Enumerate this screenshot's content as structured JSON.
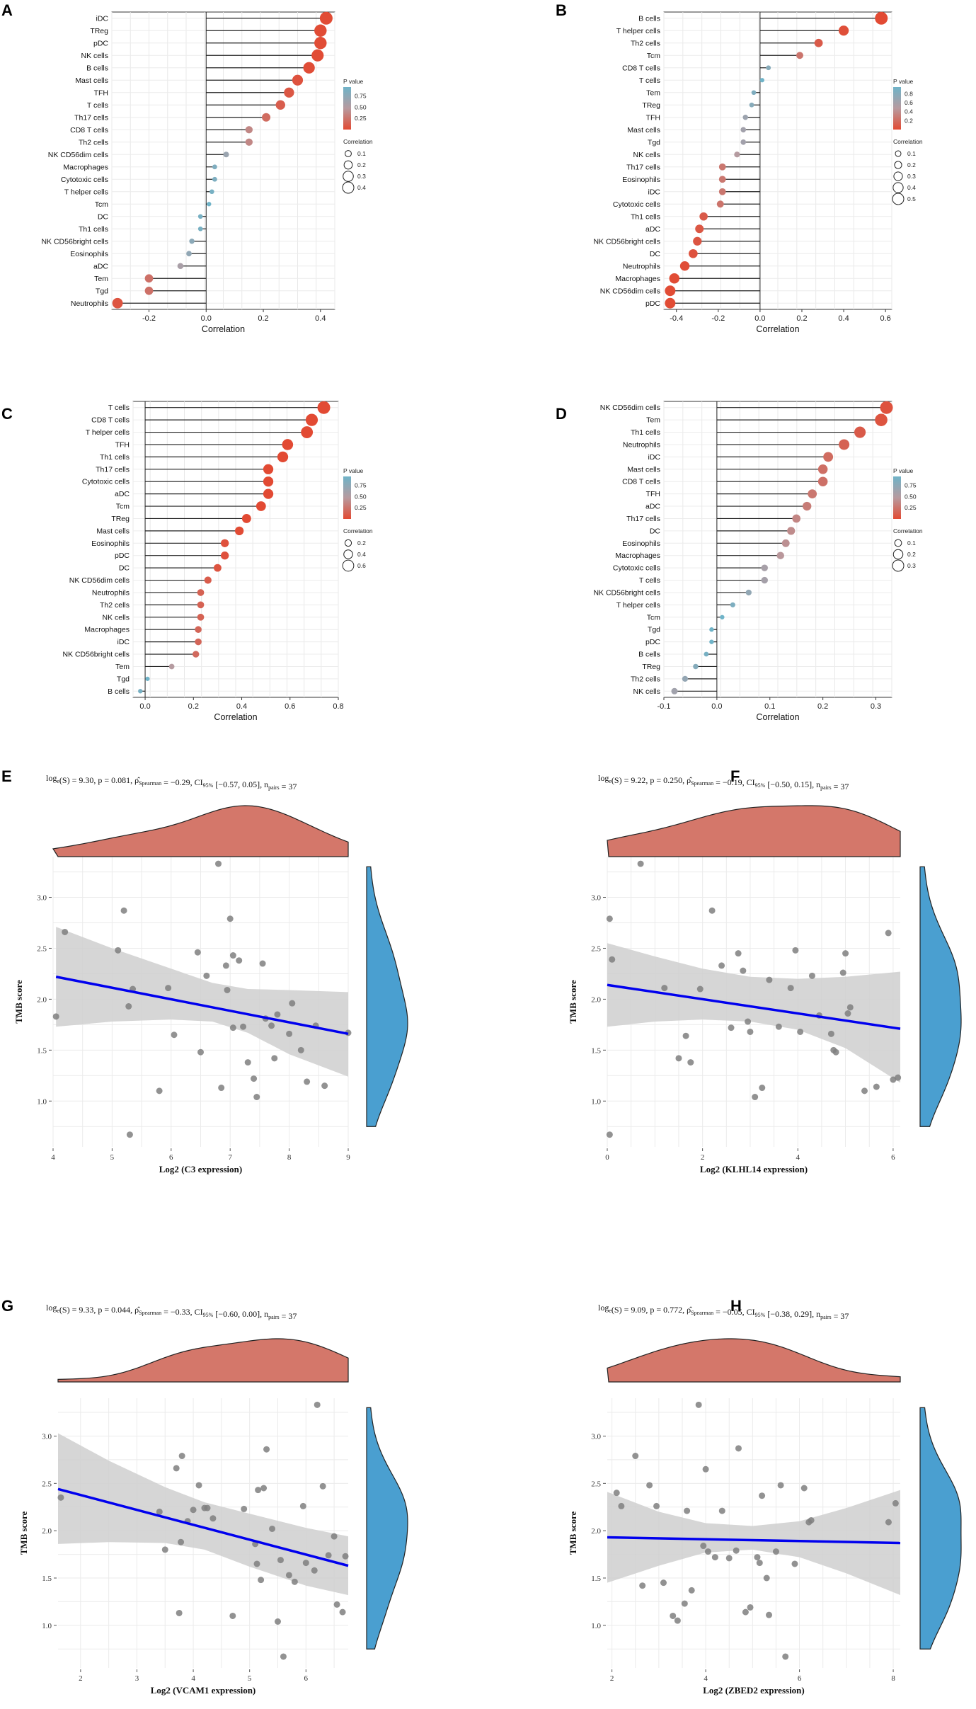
{
  "colors": {
    "low_p": "#e24a33",
    "mid_p": "#b79a9f",
    "high_p": "#6fb3c8",
    "regression": "#0000ee",
    "band": "#cfcfcf",
    "top_density": "#d4776a",
    "right_density": "#4a9fd0"
  },
  "chart_data": [
    {
      "panel": "A",
      "type": "scatter",
      "subtype": "lollipop",
      "xlabel": "Correlation",
      "xlim": [
        -0.33,
        0.45
      ],
      "xticks": [
        -0.2,
        0.0,
        0.2,
        0.4
      ],
      "xtick_labels": [
        "-0.2",
        "0.0",
        "0.2",
        "0.4"
      ],
      "categories": [
        "iDC",
        "TReg",
        "pDC",
        "NK cells",
        "B cells",
        "Mast cells",
        "TFH",
        "T cells",
        "Th17 cells",
        "CD8 T cells",
        "Th2 cells",
        "NK CD56dim cells",
        "Macrophages",
        "Cytotoxic cells",
        "T helper cells",
        "Tcm",
        "DC",
        "Th1 cells",
        "NK CD56bright cells",
        "Eosinophils",
        "aDC",
        "Tem",
        "Tgd",
        "Neutrophils"
      ],
      "values": [
        0.42,
        0.4,
        0.4,
        0.39,
        0.36,
        0.32,
        0.29,
        0.26,
        0.21,
        0.15,
        0.15,
        0.07,
        0.03,
        0.03,
        0.02,
        0.01,
        -0.02,
        -0.02,
        -0.05,
        -0.06,
        -0.09,
        -0.2,
        -0.2,
        -0.31
      ],
      "pvalues": [
        0.01,
        0.01,
        0.01,
        0.01,
        0.02,
        0.05,
        0.08,
        0.12,
        0.21,
        0.38,
        0.38,
        0.68,
        0.85,
        0.86,
        0.9,
        0.95,
        0.9,
        0.9,
        0.77,
        0.74,
        0.59,
        0.24,
        0.24,
        0.06
      ],
      "legend": {
        "p_title": "P value",
        "p_labels": [
          "0.75",
          "0.50",
          "0.25"
        ],
        "p_range": [
          0.0,
          0.95
        ],
        "size_title": "Correlation",
        "size_labels": [
          "0.1",
          "0.2",
          "0.3",
          "0.4"
        ]
      }
    },
    {
      "panel": "B",
      "type": "scatter",
      "subtype": "lollipop",
      "xlabel": "Correlation",
      "xlim": [
        -0.46,
        0.63
      ],
      "xticks": [
        -0.4,
        -0.2,
        0.0,
        0.2,
        0.4,
        0.6
      ],
      "xtick_labels": [
        "-0.4",
        "-0.2",
        "0.0",
        "0.2",
        "0.4",
        "0.6"
      ],
      "categories": [
        "B cells",
        "T helper cells",
        "Th2 cells",
        "Tcm",
        "CD8 T cells",
        "T cells",
        "Tem",
        "TReg",
        "TFH",
        "Mast cells",
        "Tgd",
        "NK cells",
        "Th17 cells",
        "Eosinophils",
        "iDC",
        "Cytotoxic cells",
        "Th1 cells",
        "aDC",
        "NK CD56bright cells",
        "DC",
        "Neutrophils",
        "Macrophages",
        "NK CD56dim cells",
        "pDC"
      ],
      "values": [
        0.58,
        0.4,
        0.28,
        0.19,
        0.04,
        0.01,
        -0.03,
        -0.04,
        -0.07,
        -0.08,
        -0.08,
        -0.11,
        -0.18,
        -0.18,
        -0.18,
        -0.19,
        -0.27,
        -0.29,
        -0.3,
        -0.32,
        -0.36,
        -0.41,
        -0.43,
        -0.43
      ],
      "pvalues": [
        0.0,
        0.03,
        0.1,
        0.27,
        0.8,
        0.95,
        0.85,
        0.8,
        0.67,
        0.63,
        0.63,
        0.51,
        0.28,
        0.28,
        0.28,
        0.26,
        0.1,
        0.08,
        0.07,
        0.05,
        0.02,
        0.01,
        0.01,
        0.01
      ],
      "legend": {
        "p_title": "P value",
        "p_labels": [
          "0.8",
          "0.6",
          "0.4",
          "0.2"
        ],
        "p_range": [
          0.0,
          0.95
        ],
        "size_title": "Correlation",
        "size_labels": [
          "0.1",
          "0.2",
          "0.3",
          "0.4",
          "0.5"
        ]
      }
    },
    {
      "panel": "C",
      "type": "scatter",
      "subtype": "lollipop",
      "xlabel": "Correlation",
      "xlim": [
        -0.05,
        0.8
      ],
      "xticks": [
        0.0,
        0.2,
        0.4,
        0.6,
        0.8
      ],
      "xtick_labels": [
        "0.0",
        "0.2",
        "0.4",
        "0.6",
        "0.8"
      ],
      "categories": [
        "T cells",
        "CD8 T cells",
        "T helper cells",
        "TFH",
        "Th1 cells",
        "Th17 cells",
        "Cytotoxic cells",
        "aDC",
        "Tcm",
        "TReg",
        "Mast cells",
        "Eosinophils",
        "pDC",
        "DC",
        "NK CD56dim cells",
        "Neutrophils",
        "Th2 cells",
        "NK cells",
        "Macrophages",
        "iDC",
        "NK CD56bright cells",
        "Tem",
        "Tgd",
        "B cells"
      ],
      "values": [
        0.74,
        0.69,
        0.67,
        0.59,
        0.57,
        0.51,
        0.51,
        0.51,
        0.48,
        0.42,
        0.39,
        0.33,
        0.33,
        0.3,
        0.26,
        0.23,
        0.23,
        0.23,
        0.22,
        0.22,
        0.21,
        0.11,
        0.01,
        -0.02
      ],
      "pvalues": [
        0.0,
        0.0,
        0.0,
        0.0,
        0.0,
        0.0,
        0.0,
        0.0,
        0.0,
        0.0,
        0.01,
        0.04,
        0.04,
        0.06,
        0.11,
        0.15,
        0.15,
        0.15,
        0.17,
        0.17,
        0.2,
        0.51,
        0.95,
        0.9
      ],
      "legend": {
        "p_title": "P value",
        "p_labels": [
          "0.75",
          "0.50",
          "0.25"
        ],
        "p_range": [
          0.0,
          0.95
        ],
        "size_title": "Correlation",
        "size_labels": [
          "0.2",
          "0.4",
          "0.6"
        ]
      }
    },
    {
      "panel": "D",
      "type": "scatter",
      "subtype": "lollipop",
      "xlabel": "Correlation",
      "xlim": [
        -0.1,
        0.33
      ],
      "xticks": [
        -0.1,
        0.0,
        0.1,
        0.2,
        0.3
      ],
      "xtick_labels": [
        "-0.1",
        "0.0",
        "0.1",
        "0.2",
        "0.3"
      ],
      "categories": [
        "NK CD56dim cells",
        "Tem",
        "Th1 cells",
        "Neutrophils",
        "iDC",
        "Mast cells",
        "CD8 T cells",
        "TFH",
        "aDC",
        "Th17 cells",
        "DC",
        "Eosinophils",
        "Macrophages",
        "Cytotoxic cells",
        "T cells",
        "NK CD56bright cells",
        "T helper cells",
        "Tcm",
        "Tgd",
        "pDC",
        "B cells",
        "TReg",
        "Th2 cells",
        "NK cells"
      ],
      "values": [
        0.32,
        0.31,
        0.27,
        0.24,
        0.21,
        0.2,
        0.2,
        0.18,
        0.17,
        0.15,
        0.14,
        0.13,
        0.12,
        0.09,
        0.09,
        0.06,
        0.03,
        0.01,
        -0.01,
        -0.01,
        -0.02,
        -0.04,
        -0.06,
        -0.08
      ],
      "pvalues": [
        0.05,
        0.06,
        0.1,
        0.15,
        0.21,
        0.23,
        0.24,
        0.28,
        0.31,
        0.37,
        0.41,
        0.44,
        0.48,
        0.6,
        0.61,
        0.73,
        0.86,
        0.95,
        0.95,
        0.95,
        0.9,
        0.81,
        0.72,
        0.64
      ],
      "legend": {
        "p_title": "P value",
        "p_labels": [
          "0.75",
          "0.50",
          "0.25"
        ],
        "p_range": [
          0.0,
          0.95
        ],
        "size_title": "Correlation",
        "size_labels": [
          "0.1",
          "0.2",
          "0.3"
        ]
      }
    },
    {
      "panel": "E",
      "type": "scatter",
      "subtype": "scatter-with-marginals",
      "stats": {
        "s": "9.30",
        "p": "0.081",
        "rho": "−0.29",
        "ci": "[−0.57, 0.05]",
        "n": "37"
      },
      "xlabel": "Log2 (C3 expression)",
      "ylabel": "TMB score",
      "xlim": [
        4.0,
        9.0
      ],
      "ylim": [
        0.55,
        3.4
      ],
      "xticks": [
        4,
        5,
        6,
        7,
        8,
        9
      ],
      "yticks": [
        1.0,
        1.5,
        2.0,
        2.5,
        3.0
      ],
      "x": [
        4.05,
        4.2,
        5.1,
        5.2,
        5.3,
        5.35,
        5.8,
        5.95,
        6.05,
        6.45,
        6.5,
        6.6,
        6.8,
        6.85,
        6.95,
        7.0,
        7.05,
        7.15,
        7.3,
        7.4,
        7.45,
        7.55,
        7.7,
        7.75,
        7.8,
        8.0,
        8.05,
        8.2,
        8.3,
        8.45,
        8.6,
        9.0,
        5.28,
        6.93,
        7.22,
        7.6,
        7.05
      ],
      "y": [
        1.83,
        2.66,
        2.48,
        2.87,
        0.67,
        2.1,
        1.1,
        2.11,
        1.65,
        2.46,
        1.48,
        2.23,
        3.33,
        1.13,
        2.09,
        2.79,
        2.43,
        2.38,
        1.38,
        1.22,
        1.04,
        2.35,
        1.74,
        1.42,
        1.85,
        1.66,
        1.96,
        1.5,
        1.19,
        1.74,
        1.15,
        1.67,
        1.93,
        2.33,
        1.73,
        1.81,
        1.72
      ],
      "fit": {
        "x0": 4.05,
        "y0": 2.22,
        "x1": 9.0,
        "y1": 1.66
      },
      "band": {
        "upper": [
          [
            4.05,
            2.71
          ],
          [
            5.0,
            2.5
          ],
          [
            6.0,
            2.3
          ],
          [
            6.7,
            2.16
          ],
          [
            7.3,
            2.1
          ],
          [
            8.0,
            2.09
          ],
          [
            9.0,
            2.07
          ]
        ],
        "lower": [
          [
            4.05,
            1.73
          ],
          [
            5.0,
            1.78
          ],
          [
            6.0,
            1.8
          ],
          [
            6.7,
            1.78
          ],
          [
            7.3,
            1.67
          ],
          [
            8.0,
            1.46
          ],
          [
            9.0,
            1.24
          ]
        ]
      }
    },
    {
      "panel": "F",
      "type": "scatter",
      "subtype": "scatter-with-marginals",
      "stats": {
        "s": "9.22",
        "p": "0.250",
        "rho": "−0.19",
        "ci": "[−0.50, 0.15]",
        "n": "37"
      },
      "xlabel": "Log2 (KLHL14 expression)",
      "ylabel": "TMB score",
      "xlim": [
        0.0,
        6.15
      ],
      "ylim": [
        0.55,
        3.4
      ],
      "xticks": [
        0,
        2,
        4,
        6
      ],
      "yticks": [
        1.0,
        1.5,
        2.0,
        2.5,
        3.0
      ],
      "x": [
        0.05,
        0.1,
        0.05,
        0.7,
        1.2,
        1.5,
        1.65,
        1.75,
        1.95,
        2.2,
        2.4,
        2.6,
        2.75,
        2.85,
        2.95,
        3.0,
        3.1,
        3.25,
        3.4,
        3.6,
        3.85,
        3.95,
        4.05,
        4.3,
        4.45,
        4.7,
        4.75,
        4.8,
        4.95,
        5.0,
        5.05,
        5.1,
        5.4,
        5.65,
        5.9,
        6.0,
        6.1
      ],
      "y": [
        2.79,
        2.39,
        0.67,
        3.33,
        2.11,
        1.42,
        1.64,
        1.38,
        2.1,
        2.87,
        2.33,
        1.72,
        2.45,
        2.28,
        1.78,
        1.68,
        1.04,
        1.13,
        2.19,
        1.73,
        2.11,
        2.48,
        1.68,
        2.23,
        1.84,
        1.66,
        1.5,
        1.48,
        2.26,
        2.45,
        1.86,
        1.92,
        1.1,
        1.14,
        2.65,
        1.21,
        1.23
      ],
      "fit": {
        "x0": 0.0,
        "y0": 2.14,
        "x1": 6.15,
        "y1": 1.71
      },
      "band": {
        "upper": [
          [
            0.0,
            2.55
          ],
          [
            1.0,
            2.42
          ],
          [
            2.0,
            2.3
          ],
          [
            3.0,
            2.22
          ],
          [
            4.0,
            2.2
          ],
          [
            5.0,
            2.22
          ],
          [
            6.15,
            2.27
          ]
        ],
        "lower": [
          [
            0.0,
            1.73
          ],
          [
            1.0,
            1.78
          ],
          [
            2.0,
            1.8
          ],
          [
            3.0,
            1.78
          ],
          [
            4.0,
            1.7
          ],
          [
            5.0,
            1.52
          ],
          [
            6.15,
            1.18
          ]
        ]
      }
    },
    {
      "panel": "G",
      "type": "scatter",
      "subtype": "scatter-with-marginals",
      "stats": {
        "s": "9.33",
        "p": "0.044",
        "rho": "−0.33",
        "ci": "[−0.60, 0.00]",
        "n": "37"
      },
      "xlabel": "Log2 (VCAM1 expression)",
      "ylabel": "TMB score",
      "xlim": [
        1.6,
        6.75
      ],
      "ylim": [
        0.55,
        3.4
      ],
      "xticks": [
        2,
        3,
        4,
        5,
        6
      ],
      "yticks": [
        1.0,
        1.5,
        2.0,
        2.5,
        3.0
      ],
      "x": [
        1.65,
        3.4,
        3.5,
        3.7,
        3.75,
        3.8,
        3.9,
        4.0,
        4.1,
        4.2,
        4.25,
        4.35,
        4.7,
        4.9,
        5.1,
        5.15,
        5.2,
        5.25,
        5.3,
        5.4,
        5.5,
        5.55,
        5.6,
        5.7,
        5.8,
        5.95,
        6.0,
        6.15,
        6.2,
        6.3,
        6.4,
        6.5,
        6.55,
        6.65,
        3.78,
        5.13,
        6.7
      ],
      "y": [
        2.35,
        2.2,
        1.8,
        2.66,
        1.13,
        2.79,
        2.1,
        2.22,
        2.48,
        2.24,
        2.24,
        2.13,
        1.1,
        2.23,
        1.86,
        2.43,
        1.48,
        2.45,
        2.86,
        2.02,
        1.04,
        1.69,
        0.67,
        1.53,
        1.46,
        2.26,
        1.66,
        1.58,
        3.33,
        2.47,
        1.74,
        1.94,
        1.22,
        1.14,
        1.88,
        1.65,
        1.73
      ],
      "fit": {
        "x0": 1.6,
        "y0": 2.44,
        "x1": 6.75,
        "y1": 1.63
      },
      "band": {
        "upper": [
          [
            1.6,
            3.03
          ],
          [
            2.5,
            2.74
          ],
          [
            3.5,
            2.46
          ],
          [
            4.2,
            2.3
          ],
          [
            5.0,
            2.18
          ],
          [
            6.0,
            2.03
          ],
          [
            6.75,
            1.94
          ]
        ],
        "lower": [
          [
            1.6,
            1.86
          ],
          [
            2.5,
            1.88
          ],
          [
            3.5,
            1.87
          ],
          [
            4.2,
            1.8
          ],
          [
            5.0,
            1.62
          ],
          [
            6.0,
            1.42
          ],
          [
            6.75,
            1.32
          ]
        ]
      }
    },
    {
      "panel": "H",
      "type": "scatter",
      "subtype": "scatter-with-marginals",
      "stats": {
        "s": "9.09",
        "p": "0.772",
        "rho": "−0.05",
        "ci": "[−0.38, 0.29]",
        "n": "37"
      },
      "xlabel": "Log2 (ZBED2 expression)",
      "ylabel": "TMB score",
      "xlim": [
        1.9,
        8.15
      ],
      "ylim": [
        0.55,
        3.4
      ],
      "xticks": [
        2,
        4,
        6,
        8
      ],
      "yticks": [
        1.0,
        1.5,
        2.0,
        2.5,
        3.0
      ],
      "x": [
        2.1,
        2.2,
        2.5,
        2.65,
        2.8,
        2.95,
        3.1,
        3.3,
        3.4,
        3.55,
        3.6,
        3.7,
        3.85,
        3.95,
        4.0,
        4.05,
        4.2,
        4.35,
        4.5,
        4.65,
        4.7,
        4.85,
        4.95,
        5.1,
        5.2,
        5.3,
        5.35,
        5.5,
        5.6,
        5.7,
        5.9,
        6.1,
        6.2,
        6.25,
        7.9,
        8.05,
        5.15
      ],
      "y": [
        2.4,
        2.26,
        2.79,
        1.42,
        2.48,
        2.26,
        1.45,
        1.1,
        1.05,
        1.23,
        2.21,
        1.37,
        3.33,
        1.84,
        2.65,
        1.78,
        1.72,
        2.21,
        1.71,
        1.79,
        2.87,
        1.14,
        1.19,
        1.72,
        2.37,
        1.5,
        1.11,
        1.78,
        2.48,
        0.67,
        1.65,
        2.45,
        2.09,
        2.11,
        2.09,
        2.29,
        1.66
      ],
      "fit": {
        "x0": 1.9,
        "y0": 1.93,
        "x1": 8.15,
        "y1": 1.87
      },
      "band": {
        "upper": [
          [
            1.9,
            2.41
          ],
          [
            3.0,
            2.2
          ],
          [
            4.0,
            2.08
          ],
          [
            5.0,
            2.05
          ],
          [
            6.0,
            2.1
          ],
          [
            7.0,
            2.24
          ],
          [
            8.15,
            2.43
          ]
        ],
        "lower": [
          [
            1.9,
            1.45
          ],
          [
            3.0,
            1.63
          ],
          [
            4.0,
            1.77
          ],
          [
            5.0,
            1.8
          ],
          [
            6.0,
            1.72
          ],
          [
            7.0,
            1.55
          ],
          [
            8.15,
            1.32
          ]
        ]
      }
    }
  ]
}
